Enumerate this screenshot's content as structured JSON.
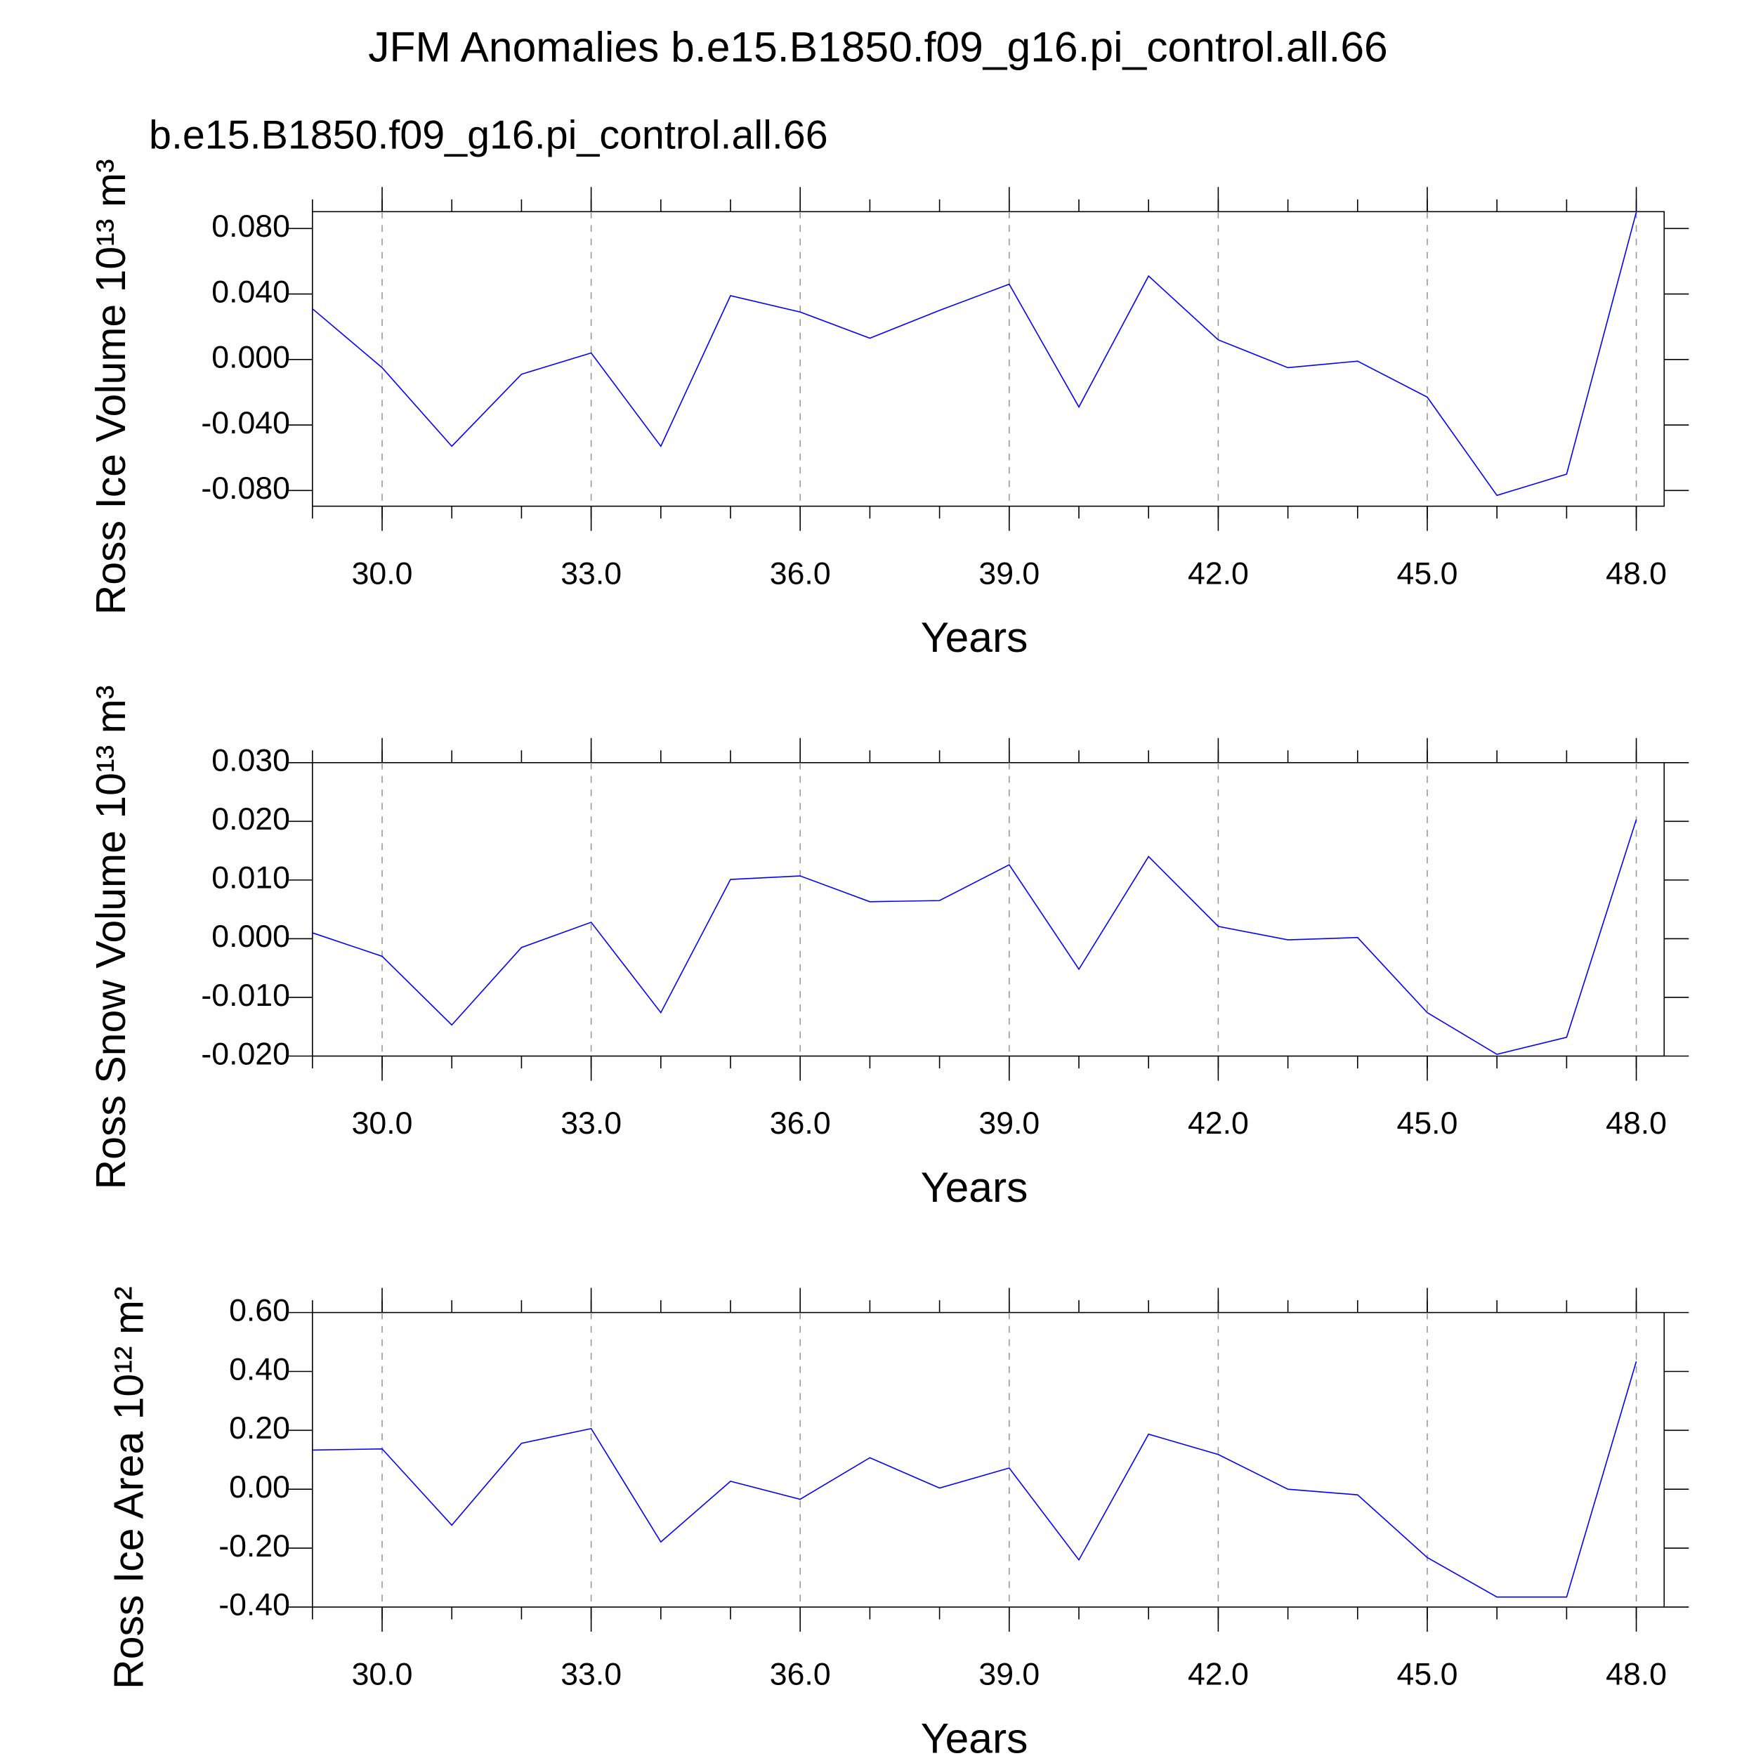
{
  "chart_data": [
    {
      "type": "line",
      "title": "JFM Anomalies b.e15.B1850.f09_g16.pi_control.all.66",
      "xlabel": "Years",
      "ylabel": "Ross Ice Volume 10¹³ m³",
      "x": [
        29,
        30,
        31,
        32,
        33,
        34,
        35,
        36,
        37,
        38,
        39,
        40,
        41,
        42,
        43,
        44,
        45,
        46,
        47,
        48
      ],
      "series": [
        {
          "name": "b.e15.B1850.f09_g16.pi_control.all.66",
          "color": "#0000ff",
          "values": [
            0.031,
            -0.005,
            -0.053,
            -0.009,
            0.004,
            -0.053,
            0.039,
            0.029,
            0.013,
            0.03,
            0.046,
            -0.029,
            0.051,
            0.012,
            -0.005,
            -0.001,
            -0.023,
            -0.083,
            -0.07,
            0.09
          ]
        }
      ],
      "xlim": [
        29,
        48.4
      ],
      "ylim": [
        -0.0896,
        0.0903
      ],
      "xticks": [
        {
          "value": 30,
          "label": "30.0"
        },
        {
          "value": 33,
          "label": "33.0"
        },
        {
          "value": 36,
          "label": "36.0"
        },
        {
          "value": 39,
          "label": "39.0"
        },
        {
          "value": 42,
          "label": "42.0"
        },
        {
          "value": 45,
          "label": "45.0"
        },
        {
          "value": 48,
          "label": "48.0"
        }
      ],
      "yticks": [
        {
          "value": -0.08,
          "label": "-0.080"
        },
        {
          "value": -0.04,
          "label": "-0.040"
        },
        {
          "value": 0,
          "label": "0.000"
        },
        {
          "value": 0.04,
          "label": "0.040"
        },
        {
          "value": 0.08,
          "label": "0.080"
        }
      ],
      "grid": true
    },
    {
      "type": "line",
      "xlabel": "Years",
      "ylabel": "Ross Snow Volume 10¹³ m³",
      "x": [
        29,
        30,
        31,
        32,
        33,
        34,
        35,
        36,
        37,
        38,
        39,
        40,
        41,
        42,
        43,
        44,
        45,
        46,
        47,
        48
      ],
      "series": [
        {
          "color": "#0000ff",
          "values": [
            0.001,
            -0.003,
            -0.0147,
            -0.0015,
            0.0028,
            -0.0126,
            0.0101,
            0.0107,
            0.0063,
            0.0065,
            0.0126,
            -0.0052,
            0.014,
            0.0021,
            -0.0002,
            0.0002,
            -0.0126,
            -0.0197,
            -0.0168,
            0.0203
          ]
        }
      ],
      "xlim": [
        29,
        48.4
      ],
      "ylim": [
        -0.02,
        0.03
      ],
      "xticks": [
        {
          "value": 30,
          "label": "30.0"
        },
        {
          "value": 33,
          "label": "33.0"
        },
        {
          "value": 36,
          "label": "36.0"
        },
        {
          "value": 39,
          "label": "39.0"
        },
        {
          "value": 42,
          "label": "42.0"
        },
        {
          "value": 45,
          "label": "45.0"
        },
        {
          "value": 48,
          "label": "48.0"
        }
      ],
      "yticks": [
        {
          "value": -0.02,
          "label": "-0.020"
        },
        {
          "value": -0.01,
          "label": "-0.010"
        },
        {
          "value": 0,
          "label": "0.000"
        },
        {
          "value": 0.01,
          "label": "0.010"
        },
        {
          "value": 0.02,
          "label": "0.020"
        },
        {
          "value": 0.03,
          "label": "0.030"
        }
      ],
      "grid": true
    },
    {
      "type": "line",
      "xlabel": "Years",
      "ylabel": "Ross Ice Area 10¹² m²",
      "x": [
        29,
        30,
        31,
        32,
        33,
        34,
        35,
        36,
        37,
        38,
        39,
        40,
        41,
        42,
        43,
        44,
        45,
        46,
        47,
        48
      ],
      "series": [
        {
          "color": "#0000ff",
          "values": [
            0.133,
            0.137,
            -0.122,
            0.156,
            0.206,
            -0.179,
            0.027,
            -0.034,
            0.107,
            0.004,
            0.072,
            -0.24,
            0.187,
            0.118,
            0.0,
            -0.019,
            -0.232,
            -0.366,
            -0.366,
            0.434
          ]
        }
      ],
      "xlim": [
        29,
        48.4
      ],
      "ylim": [
        -0.4,
        0.6
      ],
      "xticks": [
        {
          "value": 30,
          "label": "30.0"
        },
        {
          "value": 33,
          "label": "33.0"
        },
        {
          "value": 36,
          "label": "36.0"
        },
        {
          "value": 39,
          "label": "39.0"
        },
        {
          "value": 42,
          "label": "42.0"
        },
        {
          "value": 45,
          "label": "45.0"
        },
        {
          "value": 48,
          "label": "48.0"
        }
      ],
      "yticks": [
        {
          "value": -0.4,
          "label": "-0.40"
        },
        {
          "value": -0.2,
          "label": "-0.20"
        },
        {
          "value": 0,
          "label": "0.00"
        },
        {
          "value": 0.2,
          "label": "0.20"
        },
        {
          "value": 0.4,
          "label": "0.40"
        },
        {
          "value": 0.6,
          "label": "0.60"
        }
      ],
      "grid": true
    }
  ]
}
